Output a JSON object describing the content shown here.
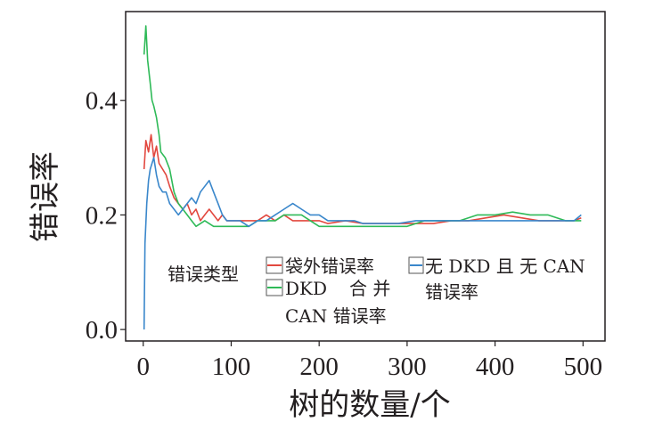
{
  "chart_data": {
    "type": "line",
    "xlabel": "树的数量/个",
    "ylabel": "错误率",
    "xlim": [
      -20,
      525
    ],
    "ylim": [
      -0.02,
      0.555
    ],
    "x_ticks": [
      0,
      100,
      200,
      300,
      400,
      500
    ],
    "x_tick_labels": [
      "0",
      "100",
      "200",
      "300",
      "400",
      "500"
    ],
    "y_ticks": [
      0.0,
      0.2,
      0.4
    ],
    "y_tick_labels": [
      "0.0",
      "0.2",
      "0.4"
    ],
    "grid": false,
    "legend": {
      "title": "错误类型",
      "placement": "inside-bottom",
      "entries": [
        {
          "label": [
            "袋外错误率"
          ],
          "color": "#e2483f"
        },
        {
          "label": [
            "DKD",
            "合 并",
            "CAN 错误率"
          ],
          "color": "#2fba58"
        },
        {
          "label": [
            "无 DKD 且 无 CAN",
            "错误率"
          ],
          "color": "#3a87cb"
        }
      ]
    },
    "series": [
      {
        "color": "#e2483f",
        "points": [
          [
            1,
            0.28
          ],
          [
            3,
            0.33
          ],
          [
            6,
            0.31
          ],
          [
            9,
            0.34
          ],
          [
            12,
            0.3
          ],
          [
            15,
            0.32
          ],
          [
            18,
            0.29
          ],
          [
            22,
            0.28
          ],
          [
            26,
            0.27
          ],
          [
            30,
            0.25
          ],
          [
            35,
            0.23
          ],
          [
            40,
            0.22
          ],
          [
            45,
            0.21
          ],
          [
            50,
            0.22
          ],
          [
            55,
            0.2
          ],
          [
            60,
            0.21
          ],
          [
            65,
            0.19
          ],
          [
            70,
            0.2
          ],
          [
            75,
            0.21
          ],
          [
            80,
            0.2
          ],
          [
            85,
            0.19
          ],
          [
            90,
            0.2
          ],
          [
            95,
            0.19
          ],
          [
            100,
            0.19
          ],
          [
            110,
            0.19
          ],
          [
            120,
            0.19
          ],
          [
            130,
            0.19
          ],
          [
            140,
            0.2
          ],
          [
            150,
            0.19
          ],
          [
            160,
            0.2
          ],
          [
            170,
            0.19
          ],
          [
            180,
            0.19
          ],
          [
            190,
            0.19
          ],
          [
            200,
            0.19
          ],
          [
            210,
            0.185
          ],
          [
            230,
            0.19
          ],
          [
            250,
            0.185
          ],
          [
            270,
            0.185
          ],
          [
            290,
            0.185
          ],
          [
            310,
            0.185
          ],
          [
            330,
            0.185
          ],
          [
            350,
            0.19
          ],
          [
            370,
            0.19
          ],
          [
            390,
            0.195
          ],
          [
            410,
            0.2
          ],
          [
            430,
            0.195
          ],
          [
            450,
            0.19
          ],
          [
            470,
            0.19
          ],
          [
            490,
            0.19
          ],
          [
            498,
            0.195
          ]
        ]
      },
      {
        "color": "#2fba58",
        "points": [
          [
            1,
            0.48
          ],
          [
            3,
            0.53
          ],
          [
            5,
            0.47
          ],
          [
            8,
            0.43
          ],
          [
            10,
            0.4
          ],
          [
            12,
            0.39
          ],
          [
            15,
            0.37
          ],
          [
            18,
            0.34
          ],
          [
            20,
            0.31
          ],
          [
            25,
            0.3
          ],
          [
            30,
            0.28
          ],
          [
            35,
            0.24
          ],
          [
            40,
            0.22
          ],
          [
            45,
            0.21
          ],
          [
            50,
            0.2
          ],
          [
            55,
            0.19
          ],
          [
            60,
            0.18
          ],
          [
            70,
            0.19
          ],
          [
            80,
            0.18
          ],
          [
            90,
            0.18
          ],
          [
            100,
            0.18
          ],
          [
            110,
            0.18
          ],
          [
            120,
            0.18
          ],
          [
            130,
            0.19
          ],
          [
            140,
            0.19
          ],
          [
            150,
            0.19
          ],
          [
            160,
            0.2
          ],
          [
            170,
            0.2
          ],
          [
            180,
            0.2
          ],
          [
            190,
            0.19
          ],
          [
            200,
            0.18
          ],
          [
            210,
            0.18
          ],
          [
            220,
            0.18
          ],
          [
            240,
            0.18
          ],
          [
            260,
            0.18
          ],
          [
            280,
            0.18
          ],
          [
            300,
            0.18
          ],
          [
            320,
            0.19
          ],
          [
            340,
            0.19
          ],
          [
            360,
            0.19
          ],
          [
            380,
            0.2
          ],
          [
            400,
            0.2
          ],
          [
            420,
            0.205
          ],
          [
            440,
            0.2
          ],
          [
            460,
            0.2
          ],
          [
            480,
            0.19
          ],
          [
            498,
            0.19
          ]
        ]
      },
      {
        "color": "#3a87cb",
        "points": [
          [
            1,
            0.0
          ],
          [
            2,
            0.15
          ],
          [
            4,
            0.22
          ],
          [
            6,
            0.26
          ],
          [
            8,
            0.28
          ],
          [
            10,
            0.29
          ],
          [
            12,
            0.3
          ],
          [
            15,
            0.27
          ],
          [
            18,
            0.25
          ],
          [
            22,
            0.24
          ],
          [
            26,
            0.24
          ],
          [
            30,
            0.22
          ],
          [
            35,
            0.21
          ],
          [
            40,
            0.2
          ],
          [
            45,
            0.21
          ],
          [
            50,
            0.22
          ],
          [
            55,
            0.23
          ],
          [
            60,
            0.22
          ],
          [
            65,
            0.24
          ],
          [
            70,
            0.25
          ],
          [
            75,
            0.26
          ],
          [
            80,
            0.24
          ],
          [
            85,
            0.22
          ],
          [
            90,
            0.2
          ],
          [
            95,
            0.19
          ],
          [
            100,
            0.19
          ],
          [
            110,
            0.19
          ],
          [
            120,
            0.18
          ],
          [
            130,
            0.19
          ],
          [
            140,
            0.19
          ],
          [
            150,
            0.2
          ],
          [
            160,
            0.21
          ],
          [
            170,
            0.22
          ],
          [
            180,
            0.21
          ],
          [
            190,
            0.2
          ],
          [
            200,
            0.2
          ],
          [
            210,
            0.19
          ],
          [
            220,
            0.19
          ],
          [
            230,
            0.19
          ],
          [
            240,
            0.19
          ],
          [
            250,
            0.185
          ],
          [
            270,
            0.185
          ],
          [
            290,
            0.185
          ],
          [
            310,
            0.19
          ],
          [
            330,
            0.19
          ],
          [
            350,
            0.19
          ],
          [
            370,
            0.19
          ],
          [
            390,
            0.19
          ],
          [
            410,
            0.19
          ],
          [
            430,
            0.19
          ],
          [
            450,
            0.19
          ],
          [
            470,
            0.19
          ],
          [
            490,
            0.19
          ],
          [
            498,
            0.2
          ]
        ]
      }
    ]
  }
}
